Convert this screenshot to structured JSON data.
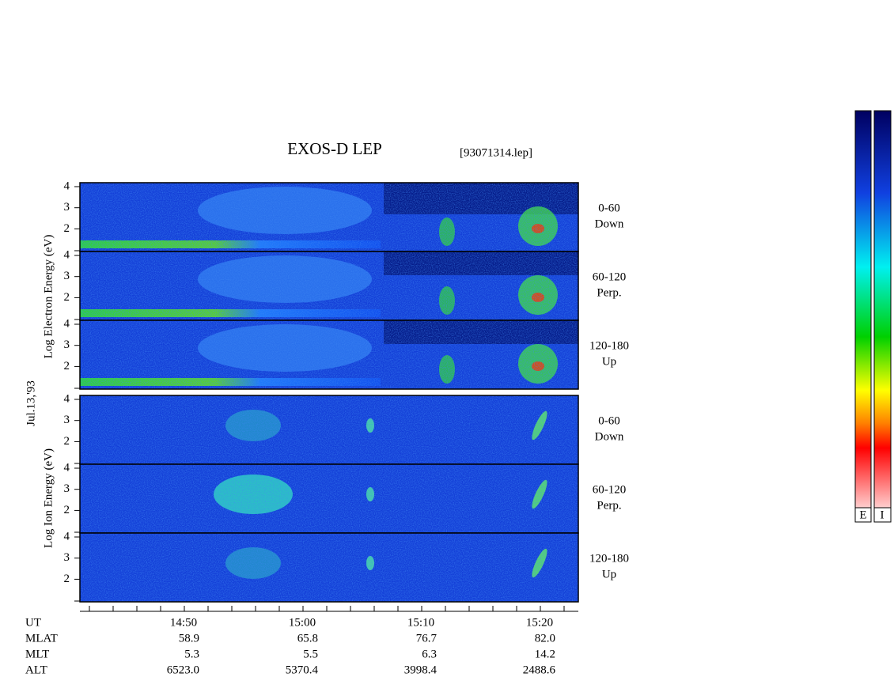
{
  "header": {
    "title": "EXOS-D LEP",
    "file": "[93071314.lep]"
  },
  "date": "Jul.13,'93",
  "energy_ticks": [
    4,
    3,
    2
  ],
  "electron": {
    "axis_label": "Log Electron Energy (eV)",
    "panels": [
      {
        "angle": "0-60",
        "direction": "Down"
      },
      {
        "angle": "60-120",
        "direction": "Perp."
      },
      {
        "angle": "120-180",
        "direction": "Up"
      }
    ]
  },
  "ion": {
    "axis_label": "Log Ion Energy (eV)",
    "panels": [
      {
        "angle": "0-60",
        "direction": "Down"
      },
      {
        "angle": "60-120",
        "direction": "Perp."
      },
      {
        "angle": "120-180",
        "direction": "Up"
      }
    ]
  },
  "ephemeris": {
    "rows": [
      {
        "label": "UT",
        "values": [
          "14:50",
          "15:00",
          "15:10",
          "15:20"
        ]
      },
      {
        "label": "MLAT",
        "values": [
          "58.9",
          "65.8",
          "76.7",
          "82.0"
        ]
      },
      {
        "label": "MLT",
        "values": [
          "5.3",
          "5.5",
          "6.3",
          "14.2"
        ]
      },
      {
        "label": "ALT",
        "values": [
          "6523.0",
          "5370.4",
          "3998.4",
          "2488.6"
        ]
      }
    ]
  },
  "colorbar": {
    "labels": [
      "E",
      "I"
    ]
  }
}
